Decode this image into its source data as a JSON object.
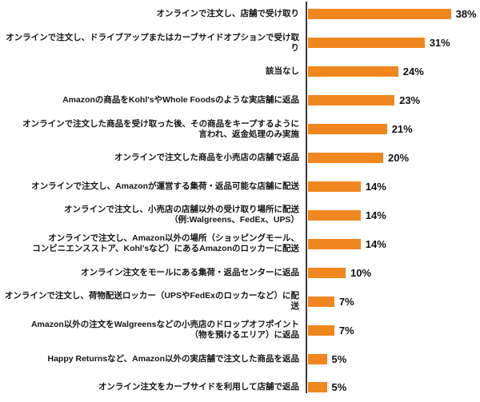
{
  "chart_data": {
    "type": "bar",
    "orientation": "horizontal",
    "title": "",
    "xlabel": "",
    "ylabel": "",
    "unit": "%",
    "xlim": [
      0,
      40
    ],
    "grid": false,
    "legend": false,
    "bar_color": "#F0871E",
    "axis_color": "#3a3a3a",
    "text_color": "#151515",
    "categories": [
      "オンラインで注文し、店舗で受け取り",
      "オンラインで注文し、ドライブアップまたはカーブサイドオプションで受け取り",
      "該当なし",
      "Amazonの商品をKohl'sやWhole Foodsのような実店舗に返品",
      "オンラインで注文した商品を受け取った後、その商品をキープするように\n言われ、返金処理のみ実施",
      "オンラインで注文した商品を小売店の店舗で返品",
      "オンラインで注文し、Amazonが運営する集荷・返品可能な店舗に配送",
      "オンラインで注文し、小売店の店舗以外の受け取り場所に配送\n（例:Walgreens、FedEx、UPS）",
      "オンラインで注文し、Amazon以外の場所（ショッピングモール、\nコンビニエンスストア、Kohl'sなど）にあるAmazonのロッカーに配送",
      "オンライン注文をモールにある集荷・返品センターに返品",
      "オンラインで注文し、荷物配送ロッカー（UPSやFedExのロッカーなど）に配送",
      "Amazon以外の注文をWalgreensなどの小売店のドロップオフポイント\n（物を預けるエリア）に返品",
      "Happy Returnsなど、Amazon以外の実店舗で注文した商品を返品",
      "オンライン注文をカーブサイドを利用して店舗で返品"
    ],
    "values": [
      38,
      31,
      24,
      23,
      21,
      20,
      14,
      14,
      14,
      10,
      7,
      7,
      5,
      5
    ],
    "value_labels": [
      "38%",
      "31%",
      "24%",
      "23%",
      "21%",
      "20%",
      "14%",
      "14%",
      "14%",
      "10%",
      "7%",
      "7%",
      "5%",
      "5%"
    ]
  }
}
